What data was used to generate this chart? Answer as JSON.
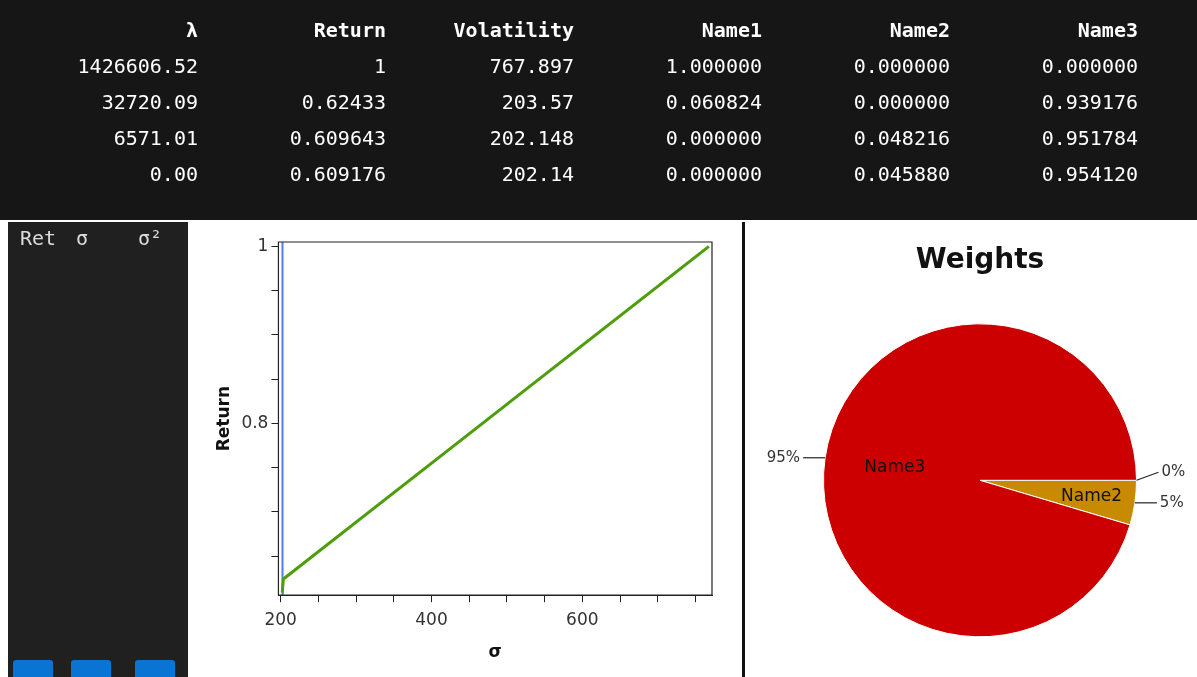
{
  "chart_data": [
    {
      "type": "other",
      "categories": [
        "λ",
        "Return",
        "Volatility",
        "Name1",
        "Name2",
        "Name3"
      ],
      "cell_labels": [
        [
          "1426606.52",
          "1",
          "767.897",
          "1.000000",
          "0.000000",
          "0.000000"
        ],
        [
          "32720.09",
          "0.62433",
          "203.57",
          "0.060824",
          "0.000000",
          "0.939176"
        ],
        [
          "6571.01",
          "0.609643",
          "202.148",
          "0.000000",
          "0.048216",
          "0.951784"
        ],
        [
          "0.00",
          "0.609176",
          "202.14",
          "0.000000",
          "0.045880",
          "0.954120"
        ]
      ]
    },
    {
      "type": "other",
      "categories": [
        "Ret",
        "σ",
        "σ²"
      ]
    },
    {
      "type": "line",
      "xlabel": "σ",
      "ylabel": "Return",
      "marker": "none",
      "line_style": "solid",
      "xlim": [
        197,
        772
      ],
      "ylim": [
        0.606,
        1.005
      ],
      "xticks": [
        200,
        {
          "value": 250,
          "label": null
        },
        {
          "value": 300,
          "label": null
        },
        {
          "value": 350,
          "label": null
        },
        400,
        {
          "value": 450,
          "label": null
        },
        {
          "value": 500,
          "label": null
        },
        {
          "value": 550,
          "label": null
        },
        600,
        {
          "value": 650,
          "label": null
        },
        {
          "value": 700,
          "label": null
        },
        {
          "value": 750,
          "label": null
        }
      ],
      "yticks": [
        {
          "value": 0.65,
          "label": null
        },
        {
          "value": 0.7,
          "label": null
        },
        {
          "value": 0.75,
          "label": null
        },
        0.8,
        {
          "value": 0.85,
          "label": null
        },
        {
          "value": 0.9,
          "label": null
        },
        {
          "value": 0.95,
          "label": null
        },
        1
      ],
      "series": [
        {
          "color": "#4d9e0a",
          "x": [
            202.14,
            202.148,
            203.57,
            767.897
          ],
          "values": [
            0.609176,
            0.609643,
            0.62433,
            1
          ]
        }
      ],
      "ref_lines": [
        {
          "axis": "x",
          "value": 202.4,
          "color": "#4f7cf0",
          "line_style": "solid"
        }
      ]
    },
    {
      "type": "pie",
      "title": "Weights",
      "categories": [
        null,
        "Name2",
        "Name3"
      ],
      "values": [
        0,
        4.6,
        95.4
      ],
      "colors": [
        "#3f6fd0",
        "#c88a00",
        "#cc0000"
      ],
      "value_labels": [
        "0%",
        "5%",
        "95%"
      ]
    }
  ]
}
